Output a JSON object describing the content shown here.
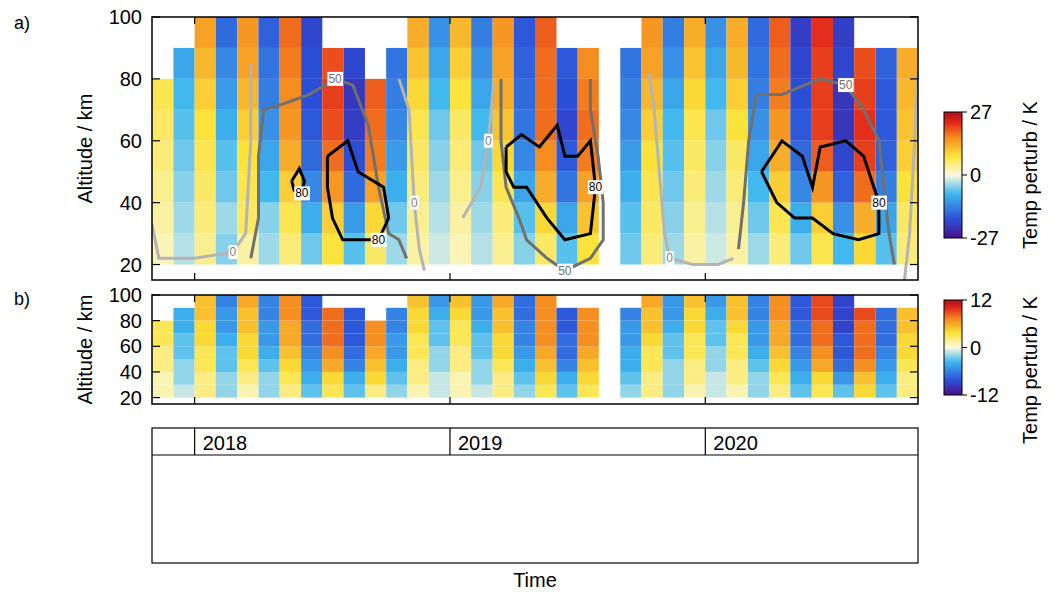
{
  "chart_data": [
    {
      "type": "heatmap",
      "panel_label": "a)",
      "y_label": "Altitude / km",
      "colorbar_label": "Temp perturb / K",
      "colorbar_range": [
        -27,
        27
      ],
      "colorbar_ticks": [
        -27,
        0,
        27
      ],
      "xlim": [
        2017.833,
        2020.833
      ],
      "xticks": [
        2018,
        2019,
        2020
      ],
      "ylim": [
        15,
        100
      ],
      "yticks": [
        20,
        40,
        60,
        80,
        100
      ],
      "tick_labels": "y",
      "x": [
        2017.833,
        2017.917,
        2018.0,
        2018.083,
        2018.167,
        2018.25,
        2018.333,
        2018.417,
        2018.5,
        2018.583,
        2018.667,
        2018.75,
        2018.833,
        2018.917,
        2019.0,
        2019.083,
        2019.167,
        2019.25,
        2019.333,
        2019.417,
        2019.5,
        2019.583,
        2019.667,
        2019.75,
        2019.833,
        2019.917,
        2020.0,
        2020.083,
        2020.167,
        2020.25,
        2020.333,
        2020.417,
        2020.5,
        2020.583,
        2020.667,
        2020.75,
        2020.833
      ],
      "y": [
        20,
        30,
        40,
        50,
        60,
        70,
        80,
        90,
        100
      ],
      "z": [
        [
          2,
          -3,
          4,
          -5,
          3,
          -4,
          5,
          -6,
          8,
          -7,
          6,
          -4,
          3,
          -2,
          2,
          -3,
          4,
          -5,
          6,
          -7,
          8,
          null,
          -6,
          5,
          -4,
          3,
          -2,
          3,
          -4,
          5,
          -6,
          7,
          -8,
          9,
          -7,
          5
        ],
        [
          3,
          -4,
          5,
          -4,
          6,
          -5,
          7,
          -9,
          10,
          -11,
          9,
          -6,
          4,
          -3,
          3,
          -4,
          5,
          -7,
          9,
          -10,
          11,
          null,
          -7,
          6,
          -5,
          4,
          -3,
          4,
          -6,
          7,
          -9,
          10,
          -12,
          13,
          -10,
          6
        ],
        [
          4,
          -5,
          6,
          -6,
          7,
          -8,
          10,
          -13,
          15,
          -16,
          14,
          -9,
          5,
          -4,
          4,
          -5,
          7,
          -10,
          13,
          -15,
          14,
          null,
          -9,
          7,
          -6,
          5,
          -4,
          5,
          -8,
          10,
          -13,
          15,
          -17,
          18,
          -14,
          8
        ],
        [
          5,
          -6,
          7,
          -7,
          8,
          -10,
          13,
          -16,
          18,
          -19,
          17,
          -11,
          6,
          -5,
          5,
          -6,
          9,
          -13,
          16,
          -18,
          17,
          null,
          -11,
          8,
          -7,
          6,
          -5,
          6,
          -10,
          13,
          -16,
          19,
          -20,
          21,
          -17,
          10
        ],
        [
          6,
          -7,
          8,
          -9,
          10,
          -12,
          15,
          -18,
          20,
          -21,
          18,
          -13,
          7,
          -6,
          6,
          -8,
          11,
          -15,
          18,
          -20,
          18,
          null,
          -13,
          10,
          -8,
          7,
          -6,
          8,
          -12,
          15,
          -18,
          21,
          -22,
          22,
          -18,
          11
        ],
        [
          7,
          -8,
          10,
          -11,
          12,
          -14,
          16,
          -19,
          21,
          -22,
          19,
          -14,
          9,
          -8,
          8,
          -10,
          13,
          -16,
          18,
          -19,
          17,
          null,
          -14,
          12,
          -10,
          9,
          -8,
          10,
          -14,
          17,
          -19,
          21,
          -22,
          21,
          -18,
          12
        ],
        [
          null,
          -10,
          12,
          -13,
          14,
          -15,
          17,
          -19,
          20,
          -20,
          null,
          -15,
          11,
          -10,
          10,
          -12,
          14,
          -17,
          18,
          -18,
          16,
          null,
          -15,
          14,
          -12,
          11,
          -10,
          12,
          -15,
          18,
          -20,
          21,
          -20,
          20,
          -17,
          13
        ],
        [
          null,
          null,
          14,
          -16,
          15,
          -17,
          18,
          -20,
          null,
          null,
          null,
          null,
          13,
          -12,
          12,
          -14,
          15,
          -18,
          19,
          null,
          null,
          null,
          null,
          15,
          -14,
          13,
          -12,
          13,
          -16,
          19,
          -21,
          22,
          -21,
          null,
          null,
          null
        ]
      ],
      "contours": [
        {
          "label": "0",
          "color": "#b4b4b4",
          "x": [
            2017.833,
            2017.86,
            2018.0,
            2018.15,
            2018.2,
            2018.22,
            2018.22
          ],
          "y": [
            33,
            22,
            22,
            24,
            30,
            60,
            85
          ]
        },
        {
          "label": "50",
          "color": "#707070",
          "x": [
            2018.22,
            2018.25,
            2018.25,
            2018.27,
            2018.35,
            2018.45,
            2018.55,
            2018.62,
            2018.68,
            2018.72,
            2018.76,
            2018.8,
            2018.83
          ],
          "y": [
            22,
            35,
            55,
            70,
            72,
            75,
            80,
            78,
            65,
            45,
            30,
            28,
            22
          ]
        },
        {
          "label": "80",
          "color": "#000000",
          "x": [
            2018.38,
            2018.41,
            2018.43,
            2018.42,
            2018.39,
            2018.38
          ],
          "y": [
            47,
            51,
            47,
            43,
            44,
            47
          ]
        },
        {
          "label": "80",
          "color": "#000000",
          "x": [
            2018.52,
            2018.6,
            2018.64,
            2018.74,
            2018.76,
            2018.72,
            2018.58,
            2018.54,
            2018.52,
            2018.52
          ],
          "y": [
            55,
            60,
            50,
            45,
            35,
            28,
            28,
            35,
            45,
            55
          ]
        },
        {
          "label": "0",
          "color": "#b4b4b4",
          "x": [
            2018.8,
            2018.84,
            2018.86,
            2018.88,
            2018.9
          ],
          "y": [
            80,
            70,
            40,
            25,
            18
          ]
        },
        {
          "label": "0",
          "color": "#b4b4b4",
          "x": [
            2019.05,
            2019.12,
            2019.15,
            2019.17
          ],
          "y": [
            35,
            45,
            60,
            78
          ]
        },
        {
          "label": "50",
          "color": "#707070",
          "x": [
            2019.2,
            2019.2,
            2019.22,
            2019.27,
            2019.3,
            2019.38,
            2019.45,
            2019.55,
            2019.6,
            2019.6,
            2019.58,
            2019.55,
            2019.55
          ],
          "y": [
            80,
            60,
            45,
            35,
            28,
            22,
            18,
            22,
            28,
            40,
            55,
            70,
            80
          ]
        },
        {
          "label": "80",
          "color": "#000000",
          "x": [
            2019.22,
            2019.28,
            2019.35,
            2019.42,
            2019.45,
            2019.5,
            2019.55,
            2019.57,
            2019.55,
            2019.45,
            2019.38,
            2019.3,
            2019.25,
            2019.22,
            2019.22
          ],
          "y": [
            58,
            62,
            58,
            65,
            55,
            55,
            60,
            45,
            30,
            28,
            35,
            45,
            45,
            50,
            58
          ]
        },
        {
          "label": "0",
          "color": "#b4b4b4",
          "x": [
            2019.78,
            2019.8,
            2019.82,
            2019.84,
            2019.86,
            2019.95,
            2020.05,
            2020.11
          ],
          "y": [
            82,
            70,
            50,
            30,
            22,
            20,
            20,
            22
          ]
        },
        {
          "label": "50",
          "color": "#707070",
          "x": [
            2020.13,
            2020.15,
            2020.17,
            2020.2,
            2020.3,
            2020.45,
            2020.55,
            2020.62,
            2020.68,
            2020.7,
            2020.72,
            2020.74
          ],
          "y": [
            25,
            40,
            60,
            75,
            75,
            80,
            78,
            70,
            60,
            45,
            30,
            20
          ]
        },
        {
          "label": "80",
          "color": "#000000",
          "x": [
            2020.22,
            2020.3,
            2020.38,
            2020.42,
            2020.45,
            2020.55,
            2020.62,
            2020.68,
            2020.68,
            2020.6,
            2020.5,
            2020.42,
            2020.35,
            2020.28,
            2020.22
          ],
          "y": [
            50,
            60,
            55,
            45,
            58,
            60,
            55,
            40,
            30,
            28,
            30,
            35,
            35,
            40,
            50
          ]
        },
        {
          "label": "0",
          "color": "#b4b4b4",
          "x": [
            2020.78,
            2020.8,
            2020.82,
            2020.83
          ],
          "y": [
            15,
            30,
            60,
            82
          ]
        }
      ]
    },
    {
      "type": "heatmap",
      "panel_label": "b)",
      "y_label": "Altitude / km",
      "x_label": "Time",
      "colorbar_label": "Temp perturb / K",
      "colorbar_range": [
        -12,
        12
      ],
      "colorbar_ticks": [
        -12,
        0,
        12
      ],
      "xlim": [
        2017.833,
        2020.833
      ],
      "xticks": [
        2018,
        2019,
        2020
      ],
      "ylim": [
        15,
        100
      ],
      "yticks": [
        20,
        40,
        60,
        80,
        100
      ],
      "x": [
        2017.833,
        2017.917,
        2018.0,
        2018.083,
        2018.167,
        2018.25,
        2018.333,
        2018.417,
        2018.5,
        2018.583,
        2018.667,
        2018.75,
        2018.833,
        2018.917,
        2019.0,
        2019.083,
        2019.167,
        2019.25,
        2019.333,
        2019.417,
        2019.5,
        2019.583,
        2019.667,
        2019.75,
        2019.833,
        2019.917,
        2020.0,
        2020.083,
        2020.167,
        2020.25,
        2020.333,
        2020.417,
        2020.5,
        2020.583,
        2020.667,
        2020.75,
        2020.833
      ],
      "y": [
        20,
        30,
        40,
        50,
        60,
        70,
        80,
        90,
        100
      ],
      "z": [
        [
          1,
          -1,
          2,
          -2,
          1,
          -2,
          2,
          -3,
          3,
          -3,
          2,
          -2,
          1,
          -1,
          1,
          -1,
          2,
          -2,
          3,
          -3,
          3,
          null,
          -2,
          2,
          -2,
          1,
          -1,
          1,
          -2,
          2,
          -3,
          3,
          -3,
          4,
          -3,
          2
        ],
        [
          1,
          -2,
          2,
          -2,
          2,
          -2,
          3,
          -4,
          4,
          -4,
          4,
          -3,
          2,
          -1,
          1,
          -2,
          2,
          -3,
          4,
          -4,
          4,
          null,
          -3,
          2,
          -2,
          2,
          -1,
          2,
          -2,
          3,
          -4,
          4,
          -5,
          5,
          -4,
          2
        ],
        [
          2,
          -2,
          3,
          -3,
          3,
          -3,
          4,
          -5,
          6,
          -6,
          5,
          -4,
          2,
          -2,
          2,
          -2,
          3,
          -4,
          5,
          -6,
          5,
          null,
          -4,
          3,
          -2,
          2,
          -2,
          2,
          -3,
          4,
          -5,
          6,
          -7,
          7,
          -5,
          3
        ],
        [
          2,
          -3,
          3,
          -3,
          4,
          -4,
          5,
          -6,
          7,
          -7,
          6,
          -5,
          3,
          -2,
          2,
          -3,
          4,
          -5,
          6,
          -7,
          6,
          null,
          -4,
          3,
          -3,
          3,
          -2,
          3,
          -4,
          5,
          -6,
          7,
          -8,
          8,
          -6,
          4
        ],
        [
          3,
          -3,
          4,
          -4,
          4,
          -5,
          6,
          -7,
          8,
          -8,
          7,
          -5,
          3,
          -3,
          3,
          -3,
          4,
          -6,
          7,
          -7,
          7,
          null,
          -5,
          4,
          -3,
          3,
          -3,
          3,
          -5,
          6,
          -7,
          8,
          -8,
          8,
          -7,
          4
        ],
        [
          3,
          -4,
          4,
          -5,
          5,
          -5,
          6,
          -7,
          8,
          -8,
          7,
          -6,
          4,
          -3,
          3,
          -4,
          5,
          -6,
          7,
          -8,
          7,
          null,
          -5,
          5,
          -4,
          4,
          -3,
          4,
          -5,
          6,
          -7,
          8,
          -9,
          8,
          -7,
          5
        ],
        [
          null,
          -4,
          5,
          -5,
          5,
          -6,
          7,
          -8,
          8,
          -8,
          null,
          -6,
          4,
          -4,
          4,
          -5,
          5,
          -7,
          7,
          -8,
          7,
          null,
          -6,
          5,
          -5,
          4,
          -4,
          5,
          -6,
          7,
          -8,
          9,
          -9,
          9,
          -7,
          5
        ],
        [
          null,
          null,
          5,
          -6,
          6,
          -6,
          7,
          -8,
          null,
          null,
          null,
          null,
          5,
          -5,
          5,
          -5,
          6,
          -7,
          7,
          null,
          null,
          null,
          null,
          6,
          -5,
          5,
          -5,
          5,
          -6,
          7,
          -8,
          9,
          -9,
          null,
          null,
          null
        ]
      ]
    }
  ]
}
